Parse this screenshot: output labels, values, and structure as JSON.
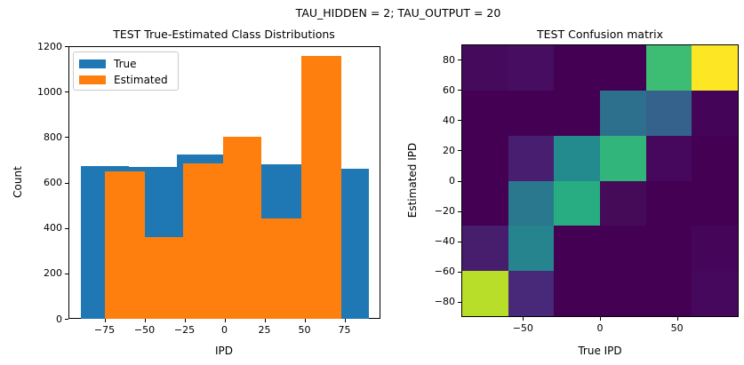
{
  "figure": {
    "suptitle": "TAU_HIDDEN = 2; TAU_OUTPUT = 20",
    "background": "#ffffff"
  },
  "chart_data": [
    {
      "id": "class-distributions",
      "type": "bar",
      "title": "TEST True-Estimated Class Distributions",
      "xlabel": "IPD",
      "ylabel": "Count",
      "xlim": [
        -97.5,
        97.5
      ],
      "ylim": [
        0,
        1200
      ],
      "grid": false,
      "xticks": [
        {
          "v": -75,
          "label": "−75"
        },
        {
          "v": -50,
          "label": "−50"
        },
        {
          "v": -25,
          "label": "−25"
        },
        {
          "v": 0,
          "label": "0"
        },
        {
          "v": 25,
          "label": "25"
        },
        {
          "v": 50,
          "label": "50"
        },
        {
          "v": 75,
          "label": "75"
        }
      ],
      "yticks": [
        {
          "v": 0,
          "label": "0"
        },
        {
          "v": 200,
          "label": "200"
        },
        {
          "v": 400,
          "label": "400"
        },
        {
          "v": 600,
          "label": "600"
        },
        {
          "v": 800,
          "label": "800"
        },
        {
          "v": 1000,
          "label": "1000"
        },
        {
          "v": 1200,
          "label": "1200"
        }
      ],
      "legend": {
        "position": "upper left",
        "entries": [
          {
            "label": "True",
            "color": "#1f77b4"
          },
          {
            "label": "Estimated",
            "color": "#ff7f0e"
          }
        ]
      },
      "series": [
        {
          "name": "True",
          "color": "#1f77b4",
          "bin_edges": [
            -90,
            -60,
            -30,
            0,
            30,
            60,
            90
          ],
          "counts": [
            672,
            668,
            725,
            681,
            682,
            661
          ]
        },
        {
          "name": "Estimated",
          "color": "#ff7f0e",
          "bin_edges": [
            -75,
            -50,
            -26,
            -1,
            23,
            48,
            73
          ],
          "counts": [
            650,
            360,
            684,
            800,
            443,
            1157
          ]
        }
      ]
    },
    {
      "id": "confusion-matrix",
      "type": "heatmap",
      "title": "TEST Confusion matrix",
      "xlabel": "True IPD",
      "ylabel": "Estimated IPD",
      "xlim": [
        -90,
        90
      ],
      "ylim": [
        -90,
        90
      ],
      "colormap": "viridis",
      "xticks": [
        {
          "v": -50,
          "label": "−50"
        },
        {
          "v": 0,
          "label": "0"
        },
        {
          "v": 50,
          "label": "50"
        }
      ],
      "yticks": [
        {
          "v": 80,
          "label": "80"
        },
        {
          "v": 60,
          "label": "60"
        },
        {
          "v": 40,
          "label": "40"
        },
        {
          "v": 20,
          "label": "20"
        },
        {
          "v": 0,
          "label": "0"
        },
        {
          "v": -20,
          "label": "−20"
        },
        {
          "v": -40,
          "label": "−40"
        },
        {
          "v": -60,
          "label": "−60"
        },
        {
          "v": -80,
          "label": "−80"
        }
      ],
      "col_edges_true_ipd": [
        -90,
        -60,
        -30,
        0,
        30,
        60,
        90
      ],
      "row_edges_estimated_ipd_top_to_bottom": [
        90,
        60,
        30,
        0,
        -30,
        -60,
        -90
      ],
      "cell_colors": [
        [
          "#450a5c",
          "#470d60",
          "#440154",
          "#440154",
          "#3dbc74",
          "#fde725"
        ],
        [
          "#440154",
          "#440154",
          "#440154",
          "#2d708e",
          "#35618d",
          "#440457"
        ],
        [
          "#440154",
          "#481f70",
          "#238a8d",
          "#31b57b",
          "#46085c",
          "#440154"
        ],
        [
          "#440154",
          "#2a788e",
          "#27ad81",
          "#450a58",
          "#440154",
          "#440154"
        ],
        [
          "#471d6e",
          "#25848e",
          "#440154",
          "#440154",
          "#440154",
          "#450559"
        ],
        [
          "#b8de29",
          "#482878",
          "#440154",
          "#440154",
          "#440154",
          "#46085c"
        ]
      ]
    }
  ]
}
